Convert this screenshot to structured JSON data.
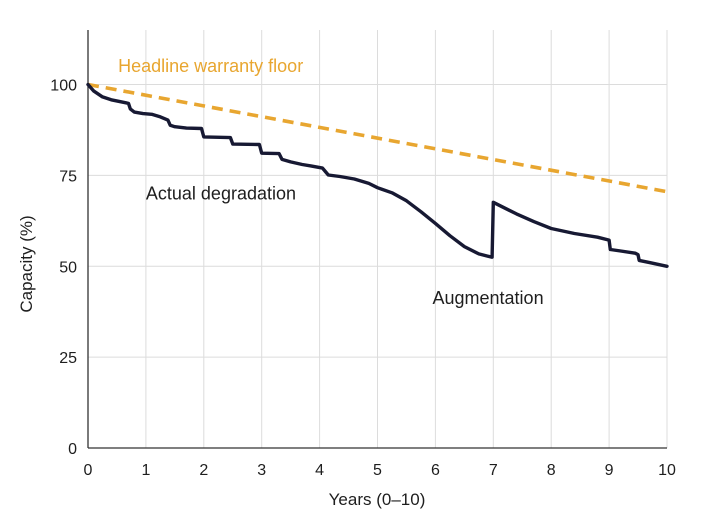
{
  "chart_data": {
    "type": "line",
    "title": "",
    "xlabel": "Years (0–10)",
    "ylabel": "Capacity (%)",
    "xlim": [
      0,
      10
    ],
    "ylim": [
      0,
      115
    ],
    "x_ticks": [
      "0",
      "1",
      "2",
      "3",
      "4",
      "5",
      "6",
      "7",
      "8",
      "9",
      "10"
    ],
    "y_ticks": [
      "0",
      "25",
      "50",
      "75",
      "100"
    ],
    "x_tick_values": [
      0,
      1,
      2,
      3,
      4,
      5,
      6,
      7,
      8,
      9,
      10
    ],
    "y_tick_values": [
      0,
      25,
      50,
      75,
      100
    ],
    "grid": true,
    "legend": "none",
    "series": [
      {
        "name": "Headline warranty floor",
        "color": "#E8A630",
        "style": "dashed",
        "x": [
          0,
          10
        ],
        "y": [
          100,
          70.5
        ]
      },
      {
        "name": "Actual degradation",
        "color": "#171933",
        "style": "solid",
        "x": [
          0,
          0.1,
          0.25,
          0.4,
          0.55,
          0.7,
          0.73,
          0.8,
          0.95,
          1.1,
          1.25,
          1.38,
          1.42,
          1.5,
          1.7,
          1.96,
          2.0,
          2.46,
          2.5,
          2.96,
          3.0,
          3.3,
          3.35,
          3.5,
          3.7,
          3.85,
          4.05,
          4.15,
          4.35,
          4.6,
          4.85,
          5.0,
          5.25,
          5.5,
          5.75,
          6.0,
          6.25,
          6.5,
          6.75,
          6.9,
          6.98,
          7.0,
          7.15,
          7.4,
          7.7,
          8.0,
          8.4,
          8.8,
          9.0,
          9.02,
          9.2,
          9.45,
          9.5,
          9.52,
          9.7,
          10.0
        ],
        "y": [
          100,
          98.2,
          96.6,
          95.8,
          95.3,
          94.8,
          93.3,
          92.4,
          92.0,
          91.8,
          91.1,
          90.2,
          88.8,
          88.4,
          88.0,
          87.9,
          85.6,
          85.4,
          83.6,
          83.5,
          81.1,
          81.0,
          79.4,
          78.7,
          78.0,
          77.6,
          77.0,
          75.1,
          74.7,
          74.0,
          72.8,
          71.6,
          70.2,
          68.0,
          65.0,
          61.8,
          58.4,
          55.4,
          53.4,
          52.8,
          52.5,
          67.6,
          66.4,
          64.4,
          62.3,
          60.4,
          59.0,
          58.0,
          57.2,
          54.6,
          54.2,
          53.6,
          53.2,
          51.6,
          51.0,
          50.0
        ]
      }
    ],
    "annotations": [
      {
        "text": "Headline warranty floor",
        "x": 0.52,
        "y": 103.4,
        "color": "#E8A630"
      },
      {
        "text": "Actual degradation",
        "x": 1.0,
        "y": 68.4,
        "color": "#1e1e1e"
      },
      {
        "text": "Augmentation",
        "x": 5.95,
        "y": 39.6,
        "color": "#1e1e1e"
      }
    ]
  }
}
